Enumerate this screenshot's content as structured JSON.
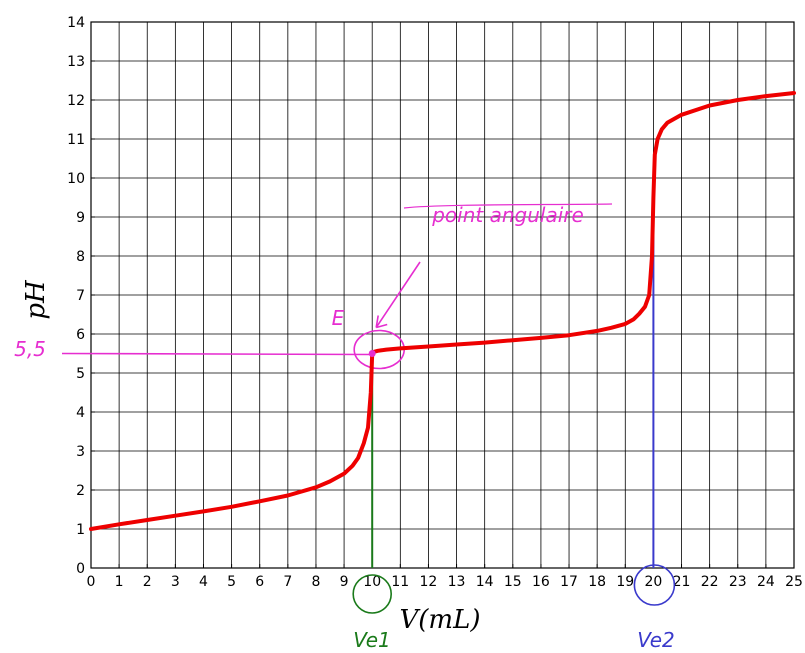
{
  "chart_data": {
    "type": "line",
    "title": "",
    "xlabel": "V(mL)",
    "ylabel": "pH",
    "xlim": [
      0,
      25
    ],
    "ylim": [
      0,
      14
    ],
    "xticks": [
      0,
      1,
      2,
      3,
      4,
      5,
      6,
      7,
      8,
      9,
      10,
      11,
      12,
      13,
      14,
      15,
      16,
      17,
      18,
      19,
      20,
      21,
      22,
      23,
      24,
      25
    ],
    "yticks": [
      0,
      1,
      2,
      3,
      4,
      5,
      6,
      7,
      8,
      9,
      10,
      11,
      12,
      13,
      14
    ],
    "grid": true,
    "series": [
      {
        "color": "#ee0000",
        "x": [
          0,
          1,
          2,
          3,
          4,
          5,
          6,
          7,
          8,
          8.5,
          9,
          9.3,
          9.5,
          9.7,
          9.85,
          9.95,
          10,
          10.05,
          10.2,
          10.5,
          11,
          12,
          13,
          14,
          15,
          16,
          17,
          18,
          18.5,
          19,
          19.3,
          19.5,
          19.7,
          19.85,
          19.95,
          20,
          20.05,
          20.15,
          20.3,
          20.5,
          21,
          22,
          23,
          24,
          25
        ],
        "y": [
          1.0,
          1.12,
          1.23,
          1.34,
          1.45,
          1.57,
          1.71,
          1.86,
          2.07,
          2.22,
          2.42,
          2.62,
          2.82,
          3.2,
          3.6,
          4.5,
          5.5,
          5.54,
          5.57,
          5.6,
          5.63,
          5.68,
          5.73,
          5.78,
          5.84,
          5.9,
          5.97,
          6.08,
          6.16,
          6.26,
          6.38,
          6.52,
          6.7,
          7.0,
          8.0,
          9.5,
          10.6,
          11.0,
          11.25,
          11.42,
          11.62,
          11.86,
          12.0,
          12.1,
          12.18
        ]
      }
    ],
    "annotations": {
      "point_label": "point angulaire",
      "point_name": "E",
      "ph_value_label": "5,5",
      "ph_value": 5.5,
      "point_v": 10,
      "ve1_label": "Ve1",
      "ve1_value": 10,
      "ve2_label": "Ve2",
      "ve2_value": 20,
      "annotation_color": "#e62ed0",
      "ve1_color": "#1a7a1a",
      "ve2_color": "#3a3acc"
    }
  }
}
